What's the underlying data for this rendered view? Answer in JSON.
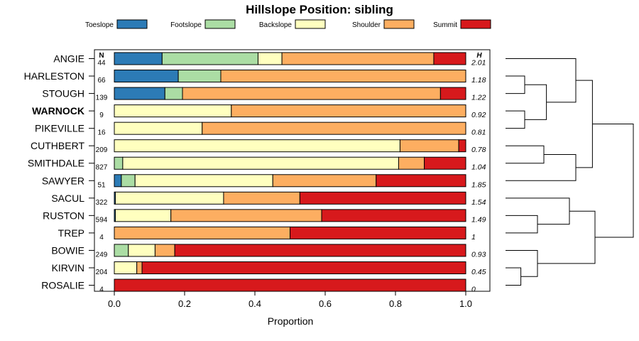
{
  "chart_data": {
    "type": "bar",
    "orientation": "horizontal",
    "stacked": true,
    "title": "Hillslope Position: sibling",
    "xlabel": "Proportion",
    "ylabel": "",
    "xlim": [
      0,
      1
    ],
    "x_ticks": [
      "0.0",
      "0.2",
      "0.4",
      "0.6",
      "0.8",
      "1.0"
    ],
    "n_header": "N",
    "h_header": "H",
    "legend_position": "top",
    "series": [
      {
        "name": "Toeslope",
        "color": "#2c7bb6"
      },
      {
        "name": "Footslope",
        "color": "#abdda4"
      },
      {
        "name": "Backslope",
        "color": "#ffffbf"
      },
      {
        "name": "Shoulder",
        "color": "#fdae61"
      },
      {
        "name": "Summit",
        "color": "#d7191c"
      }
    ],
    "rows": [
      {
        "label": "ANGIE",
        "bold": false,
        "n": "44",
        "h": "2.01",
        "values": [
          0.136,
          0.273,
          0.068,
          0.432,
          0.091
        ]
      },
      {
        "label": "HARLESTON",
        "bold": false,
        "n": "66",
        "h": "1.18",
        "values": [
          0.182,
          0.121,
          0.0,
          0.697,
          0.0
        ]
      },
      {
        "label": "STOUGH",
        "bold": false,
        "n": "139",
        "h": "1.22",
        "values": [
          0.144,
          0.05,
          0.0,
          0.734,
          0.072
        ]
      },
      {
        "label": "WARNOCK",
        "bold": true,
        "n": "9",
        "h": "0.92",
        "values": [
          0.0,
          0.0,
          0.333,
          0.667,
          0.0
        ]
      },
      {
        "label": "PIKEVILLE",
        "bold": false,
        "n": "16",
        "h": "0.81",
        "values": [
          0.0,
          0.0,
          0.25,
          0.75,
          0.0
        ]
      },
      {
        "label": "CUTHBERT",
        "bold": false,
        "n": "209",
        "h": "0.78",
        "values": [
          0.0,
          0.0,
          0.813,
          0.167,
          0.02
        ]
      },
      {
        "label": "SMITHDALE",
        "bold": false,
        "n": "827",
        "h": "1.04",
        "values": [
          0.0,
          0.024,
          0.785,
          0.073,
          0.118
        ]
      },
      {
        "label": "SAWYER",
        "bold": false,
        "n": "51",
        "h": "1.85",
        "values": [
          0.02,
          0.039,
          0.392,
          0.294,
          0.255
        ]
      },
      {
        "label": "SACUL",
        "bold": false,
        "n": "322",
        "h": "1.54",
        "values": [
          0.003,
          0.0,
          0.308,
          0.217,
          0.472
        ]
      },
      {
        "label": "RUSTON",
        "bold": false,
        "n": "594",
        "h": "1.49",
        "values": [
          0.003,
          0.0,
          0.158,
          0.429,
          0.41
        ]
      },
      {
        "label": "TREP",
        "bold": false,
        "n": "4",
        "h": "1",
        "values": [
          0.0,
          0.0,
          0.0,
          0.5,
          0.5
        ]
      },
      {
        "label": "BOWIE",
        "bold": false,
        "n": "249",
        "h": "0.93",
        "values": [
          0.0,
          0.04,
          0.076,
          0.056,
          0.828
        ]
      },
      {
        "label": "KIRVIN",
        "bold": false,
        "n": "204",
        "h": "0.45",
        "values": [
          0.0,
          0.0,
          0.064,
          0.015,
          0.921
        ]
      },
      {
        "label": "ROSALIE",
        "bold": false,
        "n": "4",
        "h": "0",
        "values": [
          0.0,
          0.0,
          0.0,
          0.0,
          1.0
        ]
      }
    ],
    "dendrogram": {
      "description": "hierarchical clustering tree of the row labels (leaf order matches rows)",
      "merges": [
        [
          [
            1,
            2
          ],
          0.15
        ],
        [
          [
            3,
            4
          ],
          0.15
        ],
        [
          [
            5,
            6
          ],
          0.3
        ],
        [
          [
            [
              5,
              6
            ],
            7
          ],
          0.55
        ],
        [
          [
            [
              1,
              2
            ],
            [
              3,
              4
            ]
          ],
          0.32
        ],
        [
          [
            0,
            [
              [
                1,
                2
              ],
              [
                3,
                4
              ]
            ]
          ],
          0.55
        ],
        [
          [
            [
              0,
              [
                [
                  1,
                  2
                ],
                [
                  3,
                  4
                ]
              ]
            ],
            [
              [
                5,
                6
              ],
              7
            ]
          ],
          0.68
        ],
        [
          [
            9,
            10
          ],
          0.25
        ],
        [
          [
            8,
            [
              9,
              10
            ]
          ],
          0.5
        ],
        [
          [
            12,
            13
          ],
          0.12
        ],
        [
          [
            11,
            [
              12,
              13
            ]
          ],
          0.25
        ],
        [
          [
            [
              8,
              [
                9,
                10
              ]
            ],
            [
              11,
              [
                12,
                13
              ]
            ]
          ],
          0.7
        ],
        [
          [
            [
              [
                0,
                [
                  [
                    1,
                    2
                  ],
                  [
                    3,
                    4
                  ]
                ]
              ],
              [
                [
                  5,
                  6
                ],
                7
              ]
            ],
            [
              [
                8,
                [
                  9,
                  10
                ]
              ],
              [
                11,
                [
                  12,
                  13
                ]
              ]
            ]
          ],
          1.0
        ]
      ]
    }
  }
}
